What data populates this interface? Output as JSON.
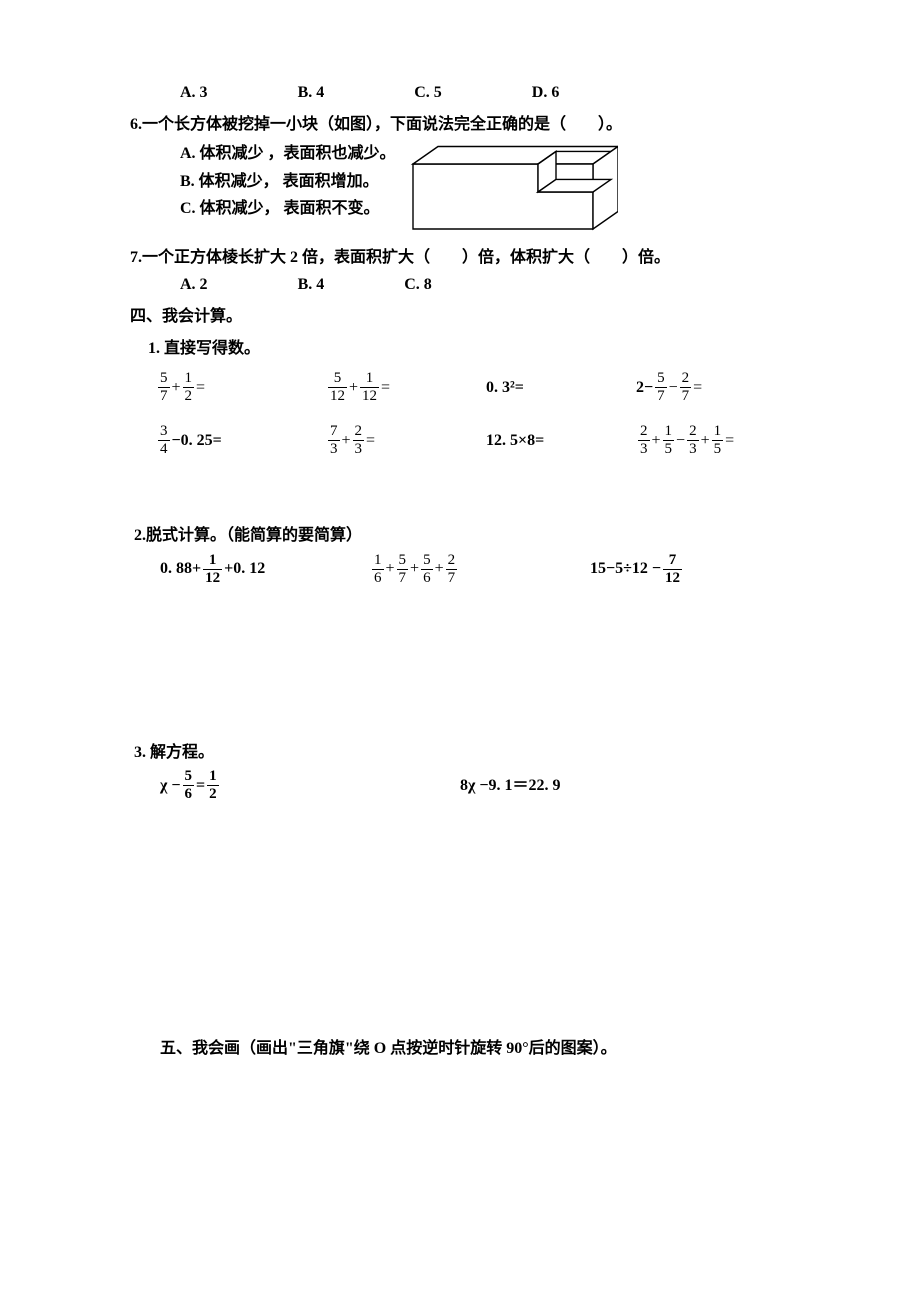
{
  "q5_options": {
    "A": "A. 3",
    "B": "B. 4",
    "C": "C. 5",
    "D": "D. 6"
  },
  "q6": {
    "stem": "6.一个长方体被挖掉一小块（如图），下面说法完全正确的是（　　）。",
    "optA": "A. 体积减少 ，表面积也减少。",
    "optB": "B. 体积减少， 表面积增加。",
    "optC": "C. 体积减少， 表面积不变。",
    "fig": {
      "outer_w": 180,
      "outer_h": 65,
      "depth": 25,
      "notch_w": 55,
      "notch_h": 28,
      "notch_depth": 18,
      "stroke": "#000000",
      "fill": "#ffffff"
    }
  },
  "q7": {
    "stem_a": "7.一个正方体棱长扩大 2 倍，表面积扩大（　　）倍，体积扩大（　　）倍。",
    "options": {
      "A": "A. 2",
      "B": "B.  4",
      "C": "C.  8"
    }
  },
  "sec4": {
    "title": "四、我会计算。",
    "part1": {
      "title": "1. 直接写得数。",
      "r1c1": "+",
      "f1a": {
        "n": "5",
        "d": "7"
      },
      "f1b": {
        "n": "1",
        "d": "2"
      },
      "f2a": {
        "n": "5",
        "d": "12"
      },
      "f2b": {
        "n": "1",
        "d": "12"
      },
      "c3": "0. 3²=",
      "c4_pre": "2−",
      "f4a": {
        "n": "5",
        "d": "7"
      },
      "f4b": {
        "n": "2",
        "d": "7"
      },
      "f5a": {
        "n": "3",
        "d": "4"
      },
      "r2c1_tail": " −0. 25=",
      "f6a": {
        "n": "7",
        "d": "3"
      },
      "f6b": {
        "n": "2",
        "d": "3"
      },
      "r2c3": "12. 5×8=",
      "f7a": {
        "n": "2",
        "d": "3"
      },
      "f7b": {
        "n": "1",
        "d": "5"
      },
      "f7c": {
        "n": "2",
        "d": "3"
      },
      "f7d": {
        "n": "1",
        "d": "5"
      }
    },
    "part2": {
      "title": "2.脱式计算。（能简算的要简算）",
      "e1_pre": "0. 88+",
      "e1_f": {
        "n": "1",
        "d": "12"
      },
      "e1_post": " +0. 12",
      "e2_f1": {
        "n": "1",
        "d": "6"
      },
      "e2_f2": {
        "n": "5",
        "d": "7"
      },
      "e2_f3": {
        "n": "5",
        "d": "6"
      },
      "e2_f4": {
        "n": "2",
        "d": "7"
      },
      "e3_pre": "15−5÷12 − ",
      "e3_f": {
        "n": "7",
        "d": "12"
      }
    },
    "part3": {
      "title": "3.  解方程。",
      "e1_var": "χ −",
      "e1_f1": {
        "n": "5",
        "d": "6"
      },
      "e1_eq": " = ",
      "e1_f2": {
        "n": "1",
        "d": "2"
      },
      "e2": "8χ  −9. 1＝22. 9"
    }
  },
  "sec5": {
    "title": "五、我会画（画出\"三角旗\"绕 O 点按逆时针旋转 90°后的图案）。"
  }
}
